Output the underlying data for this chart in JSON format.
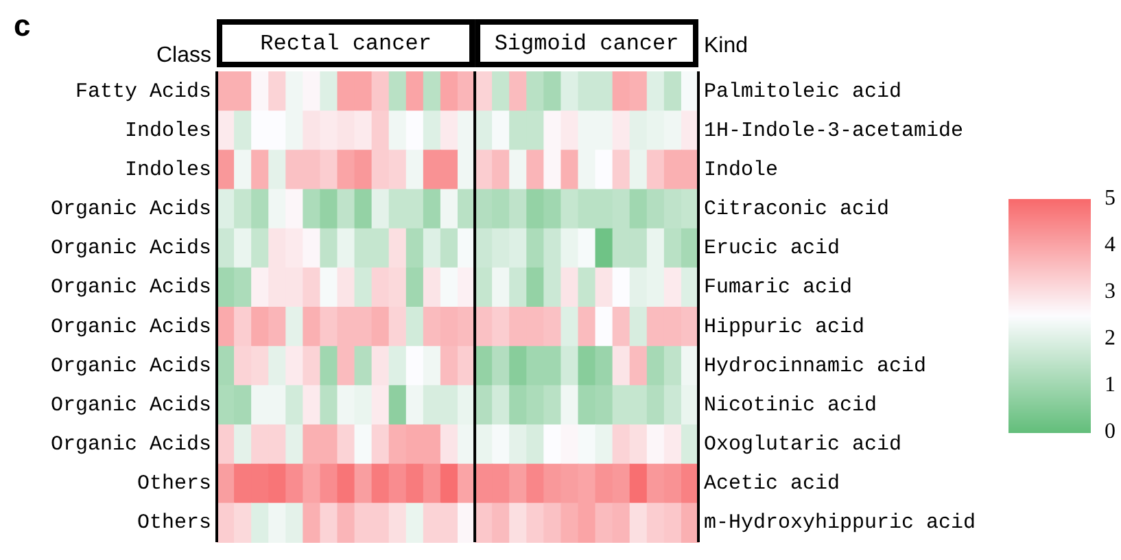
{
  "chart_data": {
    "type": "heatmap",
    "ylabel": "Class",
    "y2label": "Kind",
    "annotations": [
      "c"
    ],
    "clim": [
      0,
      5
    ],
    "cticks": [
      0,
      1,
      2,
      3,
      4,
      5
    ],
    "categories": [
      null,
      null,
      null,
      null,
      null,
      null,
      null,
      "Rectal cancer",
      null,
      null,
      null,
      null,
      null,
      null,
      null,
      null,
      null,
      null,
      null,
      null,
      null,
      "Sigmoid cancer",
      null,
      null,
      null,
      null,
      null,
      null
    ],
    "y_categories": [
      "Fatty Acids",
      "Indoles",
      "Indoles",
      "Organic Acids",
      "Organic Acids",
      "Organic Acids",
      "Organic Acids",
      "Organic Acids",
      "Organic Acids",
      "Organic Acids",
      "Others",
      "Others"
    ],
    "y2_categories": [
      "Palmitoleic acid",
      "1H-Indole-3-acetamide",
      "Indole",
      "Citraconic acid",
      "Erucic acid",
      "Fumaric acid",
      "Hippuric acid",
      "Hydrocinnamic acid",
      "Nicotinic acid",
      "Oxoglutaric acid",
      "Acetic acid",
      "m-Hydroxyhippuric acid"
    ],
    "cells": [
      [
        3.8,
        3.8,
        2.6,
        3.2,
        2.3,
        2.6,
        2.0,
        4.0,
        4.0,
        3.4,
        1.4,
        4.0,
        1.4,
        4.0,
        3.7,
        3.2,
        1.6,
        3.6,
        1.4,
        1.1,
        2.0,
        1.7,
        1.7,
        3.9,
        3.8,
        2.0,
        1.5,
        2.4
      ],
      [
        2.8,
        1.9,
        2.5,
        2.5,
        2.3,
        2.9,
        2.8,
        2.9,
        2.8,
        3.3,
        2.3,
        2.5,
        2.0,
        2.8,
        2.3,
        2.0,
        2.4,
        1.6,
        1.6,
        2.6,
        2.8,
        2.3,
        2.3,
        2.8,
        2.1,
        2.2,
        2.3,
        2.8
      ],
      [
        4.2,
        2.3,
        3.8,
        2.1,
        3.5,
        3.5,
        3.3,
        4.0,
        4.2,
        3.3,
        3.2,
        2.3,
        4.3,
        4.3,
        2.3,
        3.3,
        3.6,
        2.3,
        3.7,
        2.6,
        3.8,
        2.3,
        2.5,
        3.3,
        2.2,
        3.4,
        3.8,
        3.8
      ],
      [
        2.0,
        1.6,
        1.2,
        2.3,
        2.6,
        1.2,
        0.8,
        1.5,
        0.8,
        2.1,
        1.6,
        1.6,
        1.0,
        2.3,
        1.4,
        1.3,
        1.2,
        1.5,
        0.8,
        1.0,
        1.6,
        1.4,
        1.4,
        1.5,
        1.0,
        1.3,
        1.5,
        1.6
      ],
      [
        1.7,
        2.2,
        1.6,
        2.9,
        2.8,
        2.6,
        1.5,
        2.2,
        1.6,
        1.6,
        3.0,
        1.2,
        2.0,
        1.5,
        2.4,
        1.7,
        1.9,
        2.0,
        1.2,
        1.7,
        2.2,
        2.4,
        0.2,
        1.5,
        1.5,
        2.2,
        1.4,
        1.1
      ],
      [
        1.0,
        1.2,
        2.7,
        2.9,
        2.9,
        3.2,
        2.4,
        2.9,
        1.8,
        3.2,
        3.1,
        1.0,
        2.9,
        2.4,
        2.7,
        1.6,
        2.3,
        1.7,
        0.8,
        1.7,
        2.9,
        1.6,
        2.9,
        2.5,
        2.1,
        2.2,
        2.8,
        2.0
      ],
      [
        3.9,
        3.3,
        3.9,
        3.7,
        2.1,
        3.8,
        3.4,
        3.6,
        3.6,
        3.8,
        3.2,
        1.8,
        3.6,
        3.7,
        3.6,
        3.5,
        3.3,
        3.6,
        3.6,
        3.5,
        2.0,
        3.6,
        2.5,
        3.5,
        1.9,
        3.6,
        3.6,
        3.5
      ],
      [
        1.1,
        3.2,
        3.1,
        2.1,
        2.8,
        3.2,
        1.0,
        3.6,
        1.3,
        2.9,
        2.0,
        2.5,
        2.3,
        3.6,
        3.3,
        0.8,
        1.3,
        0.6,
        1.0,
        1.0,
        1.8,
        0.6,
        0.9,
        2.9,
        3.6,
        1.1,
        1.5,
        2.3
      ],
      [
        1.2,
        1.1,
        2.3,
        2.3,
        1.8,
        2.8,
        1.4,
        2.3,
        2.2,
        2.8,
        0.7,
        2.3,
        1.9,
        1.9,
        2.2,
        1.3,
        1.8,
        1.0,
        1.2,
        1.4,
        2.3,
        1.0,
        1.1,
        1.6,
        1.6,
        1.3,
        1.7,
        2.2
      ],
      [
        3.3,
        2.1,
        3.2,
        3.2,
        2.1,
        3.8,
        3.8,
        3.2,
        2.4,
        3.2,
        3.8,
        3.9,
        3.9,
        2.9,
        2.3,
        2.2,
        2.4,
        2.1,
        1.9,
        2.5,
        2.6,
        2.4,
        2.2,
        3.2,
        3.0,
        2.6,
        2.8,
        1.9
      ],
      [
        4.1,
        4.7,
        4.7,
        4.8,
        4.4,
        4.0,
        4.4,
        4.8,
        4.1,
        4.7,
        4.4,
        4.7,
        4.3,
        4.9,
        4.0,
        4.4,
        4.4,
        4.1,
        4.5,
        4.2,
        4.1,
        4.0,
        4.3,
        4.2,
        4.9,
        4.2,
        4.3,
        4.6
      ],
      [
        3.3,
        3.1,
        2.0,
        2.3,
        2.1,
        3.8,
        3.2,
        3.7,
        3.3,
        3.3,
        3.0,
        2.2,
        3.2,
        3.2,
        2.6,
        3.4,
        3.6,
        3.0,
        3.3,
        3.5,
        3.8,
        4.0,
        3.6,
        3.7,
        3.0,
        3.3,
        3.4,
        3.8
      ]
    ]
  }
}
